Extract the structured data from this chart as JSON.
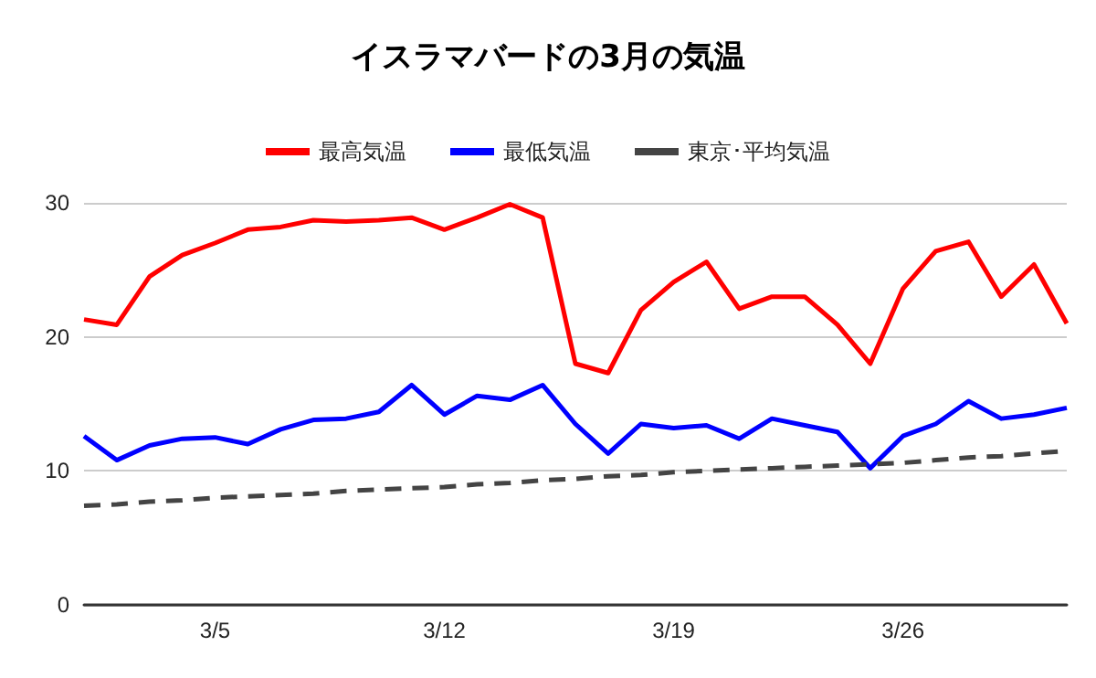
{
  "chart_data": {
    "type": "line",
    "title": "イスラマバードの3月の気温",
    "categories": [
      null,
      null,
      null,
      null,
      "3/5",
      null,
      null,
      null,
      null,
      null,
      null,
      "3/12",
      null,
      null,
      null,
      null,
      null,
      null,
      "3/19",
      null,
      null,
      null,
      null,
      null,
      null,
      "3/26",
      null,
      null,
      null,
      null,
      null
    ],
    "series": [
      {
        "name": "最高気温",
        "color": "#ff0000",
        "values": [
          21.3,
          20.9,
          24.5,
          26.1,
          27.0,
          28.0,
          28.2,
          28.7,
          28.6,
          28.7,
          28.9,
          28.0,
          28.9,
          29.9,
          28.9,
          18.0,
          17.3,
          22.0,
          24.1,
          25.6,
          22.1,
          23.0,
          23.0,
          20.9,
          18.0,
          23.6,
          26.4,
          27.1,
          23.0,
          25.4,
          21.0
        ]
      },
      {
        "name": "最低気温",
        "color": "#0000ff",
        "values": [
          12.6,
          10.8,
          11.9,
          12.4,
          12.5,
          12.0,
          13.1,
          13.8,
          13.9,
          14.4,
          16.4,
          14.2,
          15.6,
          15.3,
          16.4,
          13.5,
          11.3,
          13.5,
          13.2,
          13.4,
          12.4,
          13.9,
          13.4,
          12.9,
          10.2,
          12.6,
          13.5,
          15.2,
          13.9,
          14.2,
          14.7
        ]
      },
      {
        "name": "東京･平均気温",
        "color": "#444444",
        "line_style": "dashed",
        "values": [
          7.4,
          7.5,
          7.7,
          7.8,
          8.0,
          8.1,
          8.2,
          8.3,
          8.5,
          8.6,
          8.7,
          8.8,
          9.0,
          9.1,
          9.3,
          9.4,
          9.6,
          9.7,
          9.9,
          10.0,
          10.1,
          10.2,
          10.3,
          10.4,
          10.5,
          10.6,
          10.8,
          11.0,
          11.1,
          11.3,
          11.5
        ]
      }
    ],
    "ylim": [
      0,
      30
    ],
    "yticks": [
      0,
      10,
      20,
      30
    ],
    "grid": "y",
    "legend": "top",
    "marker": "none",
    "line_style": "solid"
  }
}
